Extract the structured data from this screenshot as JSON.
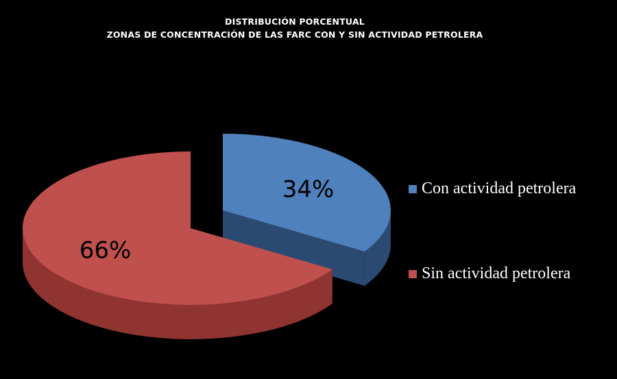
{
  "chart_data": {
    "type": "pie",
    "style": "3d-exploded",
    "title_lines": [
      "DISTRIBUCIÓN  PORCENTUAL",
      "ZONAS DE CONCENTRACIÓN  DE LAS FARC  CON   Y SIN ACTIVIDAD  PETROLERA"
    ],
    "slices": [
      {
        "name": "Con actividad petrolera",
        "value": 34,
        "label": "34%",
        "color": "#4f81bd",
        "side_color": "#2a4a72",
        "exploded": true
      },
      {
        "name": "Sin actividad petrolera",
        "value": 66,
        "label": "66%",
        "color": "#c0504d",
        "side_color": "#8f3431",
        "exploded": true
      }
    ],
    "legend_position": "right",
    "background": "#000000"
  }
}
